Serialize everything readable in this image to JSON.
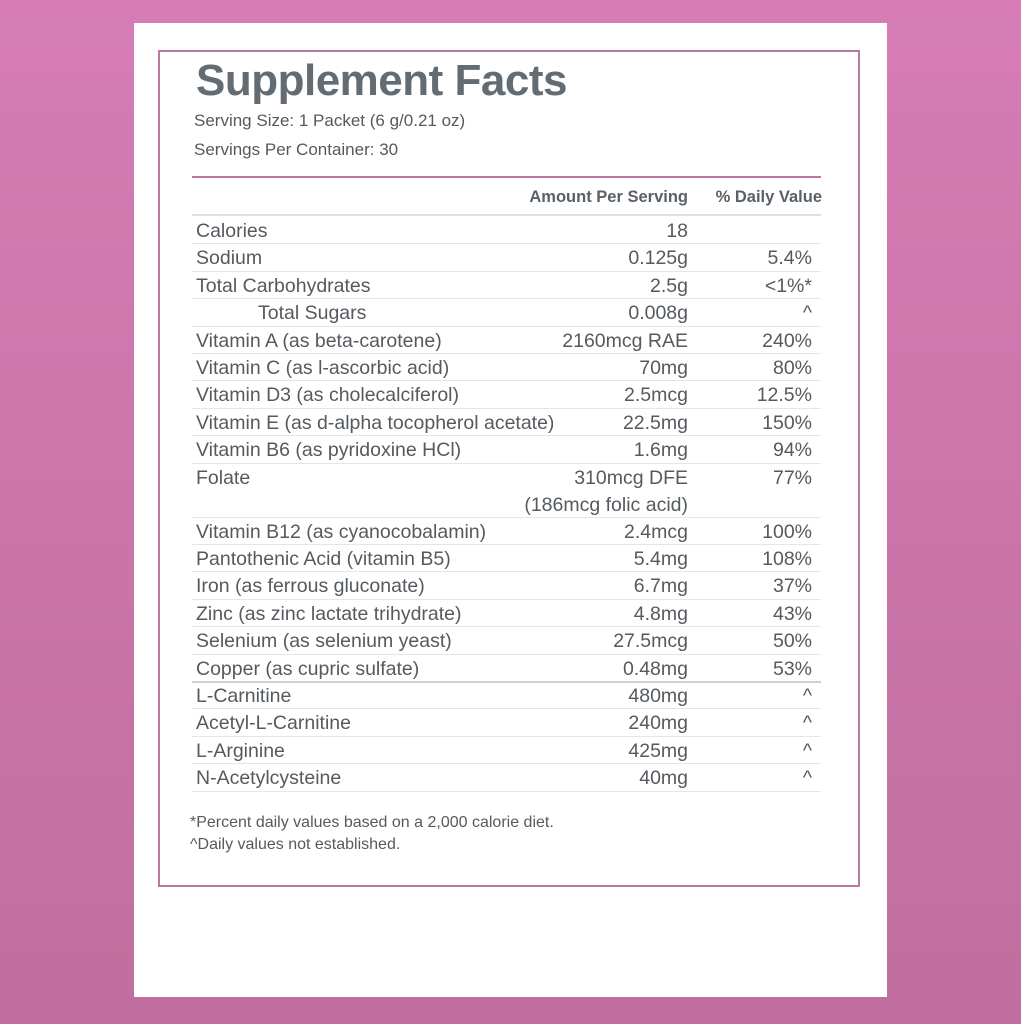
{
  "title": "Supplement Facts",
  "serving_size": "Serving Size: 1 Packet (6 g/0.21 oz)",
  "servings_per_container": "Servings Per Container: 30",
  "columns": {
    "amount": "Amount Per Serving",
    "daily_value": "% Daily Value"
  },
  "rows": [
    {
      "name": "Calories",
      "amount": "18",
      "dv": ""
    },
    {
      "name": "Sodium",
      "amount": "0.125g",
      "dv": "5.4%"
    },
    {
      "name": "Total Carbohydrates",
      "amount": "2.5g",
      "dv": "<1%*"
    },
    {
      "name": "Total Sugars",
      "amount": "0.008g",
      "dv": "^",
      "indent": true
    },
    {
      "name": "Vitamin A (as beta-carotene)",
      "amount": "2160mcg RAE",
      "dv": "240%"
    },
    {
      "name": "Vitamin C (as l-ascorbic acid)",
      "amount": "70mg",
      "dv": "80%"
    },
    {
      "name": "Vitamin D3 (as cholecalciferol)",
      "amount": "2.5mcg",
      "dv": "12.5%"
    },
    {
      "name": "Vitamin E (as d-alpha tocopherol acetate)",
      "amount": "22.5mg",
      "dv": "150%"
    },
    {
      "name": "Vitamin B6 (as pyridoxine HCl)",
      "amount": "1.6mg",
      "dv": "94%"
    },
    {
      "name": "Folate",
      "amount": "310mcg DFE",
      "amount2": "(186mcg folic acid)",
      "dv": "77%"
    },
    {
      "name": "Vitamin B12 (as cyanocobalamin)",
      "amount": "2.4mcg",
      "dv": "100%"
    },
    {
      "name": "Pantothenic Acid (vitamin B5)",
      "amount": "5.4mg",
      "dv": "108%"
    },
    {
      "name": "Iron (as ferrous gluconate)",
      "amount": "6.7mg",
      "dv": "37%"
    },
    {
      "name": "Zinc (as zinc lactate trihydrate)",
      "amount": "4.8mg",
      "dv": "43%"
    },
    {
      "name": "Selenium (as selenium yeast)",
      "amount": "27.5mcg",
      "dv": "50%"
    },
    {
      "name": "Copper (as cupric sulfate)",
      "amount": "0.48mg",
      "dv": "53%"
    },
    {
      "name": "L-Carnitine",
      "amount": "480mg",
      "dv": "^"
    },
    {
      "name": "Acetyl-L-Carnitine",
      "amount": "240mg",
      "dv": "^"
    },
    {
      "name": "L-Arginine",
      "amount": "425mg",
      "dv": "^"
    },
    {
      "name": "N-Acetylcysteine",
      "amount": "40mg",
      "dv": "^"
    }
  ],
  "footnotes": [
    "*Percent daily values based on a 2,000 calorie diet.",
    "^Daily values not established."
  ],
  "colors": {
    "background": "#d17ab0",
    "border": "#b9799f",
    "title": "#636b73"
  }
}
